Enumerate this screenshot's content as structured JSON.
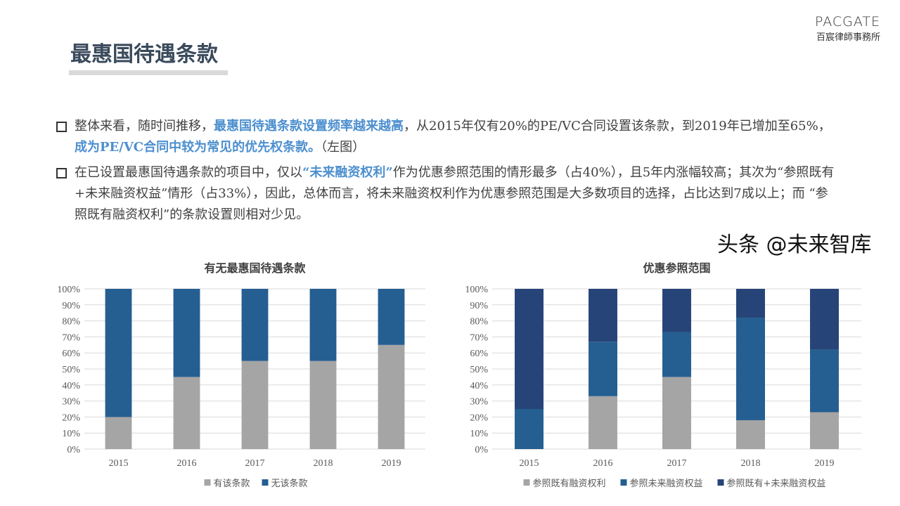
{
  "title": "最惠国待遇条款",
  "logo": {
    "en": "PACGATE",
    "cn": "百宸律師事務所"
  },
  "bullets": [
    {
      "parts": [
        {
          "t": "整体来看，随时间推移，"
        },
        {
          "t": "最惠国待遇条款设置频率越来越高",
          "hl": true
        },
        {
          "t": "，从2015年仅有20%的PE/VC合同设置该条款，到2019年已增加至65%，"
        },
        {
          "t": "成为PE/VC合同中较为常见的优先权条款。",
          "hl": true
        },
        {
          "t": "（左图）"
        }
      ]
    },
    {
      "parts": [
        {
          "t": "在已设置最惠国待遇条款的项目中，仅以"
        },
        {
          "t": "“未来融资权利”",
          "hl": true
        },
        {
          "t": "作为优惠参照范围的情形最多（占40%），且5年内涨幅较高；其次为“参照既有+未来融资权益”情形（占33%），因此，总体而言，将未来融资权利作为优惠参照范围是大多数项目的选择，占比达到7成以上；而 “参照既有融资权利”的条款设置则相对少见。"
        }
      ]
    }
  ],
  "watermark": "头条 @未来智库",
  "chart_data": [
    {
      "type": "bar",
      "stacked": true,
      "title": "有无最惠国待遇条款",
      "categories": [
        "2015",
        "2016",
        "2017",
        "2018",
        "2019"
      ],
      "yticks": [
        "0%",
        "10%",
        "20%",
        "30%",
        "40%",
        "50%",
        "60%",
        "70%",
        "80%",
        "90%",
        "100%"
      ],
      "ylim": [
        0,
        100
      ],
      "grid": true,
      "legend": "bottom",
      "series": [
        {
          "name": "有该条款",
          "color": "#a5a5a5",
          "values": [
            20,
            45,
            55,
            55,
            65
          ]
        },
        {
          "name": "无该条款",
          "color": "#255e91",
          "values": [
            80,
            55,
            45,
            45,
            35
          ]
        }
      ]
    },
    {
      "type": "bar",
      "stacked": true,
      "title": "优惠参照范围",
      "categories": [
        "2015",
        "2016",
        "2017",
        "2018",
        "2019"
      ],
      "yticks": [
        "0%",
        "10%",
        "20%",
        "30%",
        "40%",
        "50%",
        "60%",
        "70%",
        "80%",
        "90%",
        "100%"
      ],
      "ylim": [
        0,
        100
      ],
      "grid": true,
      "legend": "bottom",
      "series": [
        {
          "name": "参照既有融资权利",
          "color": "#a5a5a5",
          "values": [
            0,
            33,
            45,
            18,
            23
          ]
        },
        {
          "name": "参照未来融资权益",
          "color": "#255e91",
          "values": [
            25,
            34,
            28,
            64,
            39
          ]
        },
        {
          "name": "参照既有+未来融资权益",
          "color": "#264478",
          "values": [
            75,
            33,
            27,
            18,
            38
          ]
        }
      ]
    }
  ]
}
